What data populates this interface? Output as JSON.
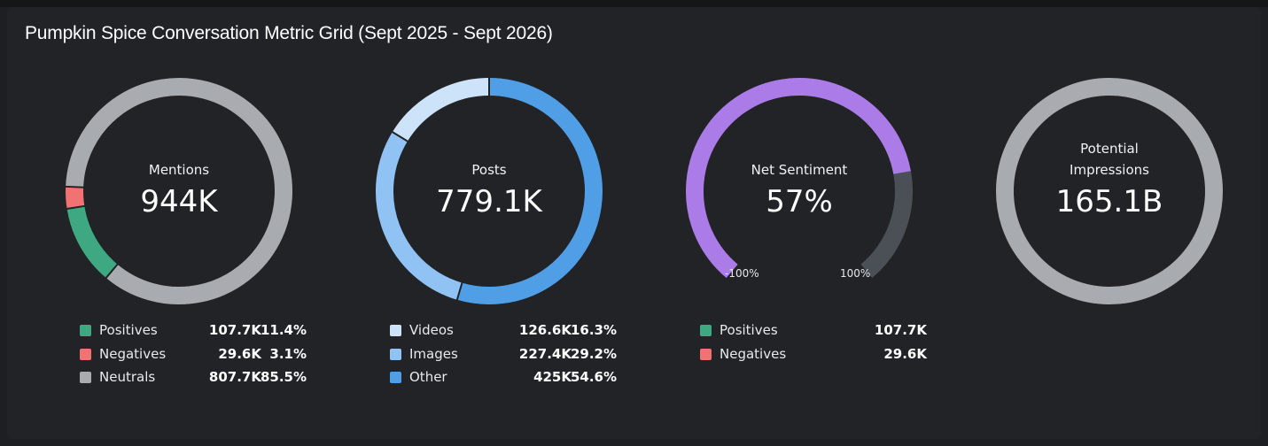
{
  "title": "Pumpkin Spice Conversation Metric Grid (Sept 2025 - Sept 2026)",
  "chart_data": [
    {
      "type": "pie",
      "variant": "donut",
      "center_label": "Mentions",
      "center_value": "944K",
      "slices": [
        {
          "name": "Positives",
          "value": 107.7,
          "value_label": "107.7K",
          "percent": 11.4,
          "percent_label": "11.4%",
          "color": "#3ea882"
        },
        {
          "name": "Negatives",
          "value": 29.6,
          "value_label": "29.6K",
          "percent": 3.1,
          "percent_label": "3.1%",
          "color": "#f07272"
        },
        {
          "name": "Neutrals",
          "value": 807.7,
          "value_label": "807.7K",
          "percent": 85.5,
          "percent_label": "85.5%",
          "color": "#a8abaf"
        }
      ]
    },
    {
      "type": "pie",
      "variant": "donut",
      "center_label": "Posts",
      "center_value": "779.1K",
      "slices": [
        {
          "name": "Videos",
          "value": 126.6,
          "value_label": "126.6K",
          "percent": 16.3,
          "percent_label": "16.3%",
          "color": "#cde3fa"
        },
        {
          "name": "Images",
          "value": 227.4,
          "value_label": "227.4K",
          "percent": 29.2,
          "percent_label": "29.2%",
          "color": "#90c2f3"
        },
        {
          "name": "Other",
          "value": 425,
          "value_label": "425K",
          "percent": 54.6,
          "percent_label": "54.6%",
          "color": "#4f9ee6"
        }
      ]
    },
    {
      "type": "gauge",
      "center_label": "Net Sentiment",
      "center_value": "57%",
      "value": 57,
      "range": [
        -100,
        100
      ],
      "min_label": "-100%",
      "max_label": "100%",
      "fill_color": "#ab7ce8",
      "track_color": "#4a5056",
      "legend": [
        {
          "name": "Positives",
          "value_label": "107.7K",
          "color": "#3ea882"
        },
        {
          "name": "Negatives",
          "value_label": "29.6K",
          "color": "#f07272"
        }
      ]
    },
    {
      "type": "pie",
      "variant": "donut",
      "center_label_lines": [
        "Potential",
        "Impressions"
      ],
      "center_value": "165.1B",
      "color": "#a8abaf"
    }
  ]
}
